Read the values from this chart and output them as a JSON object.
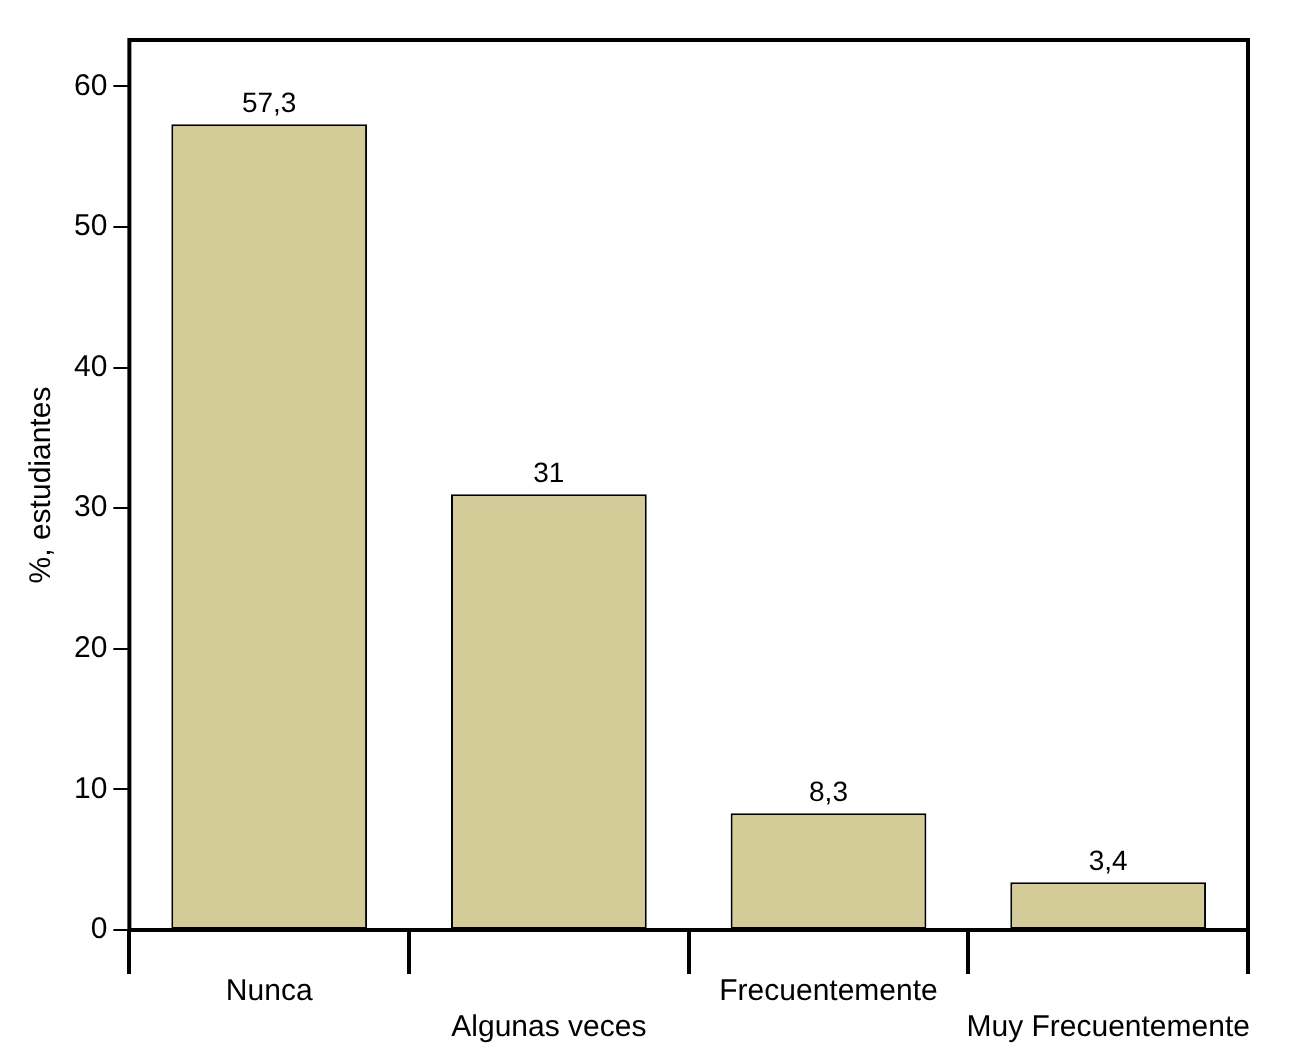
{
  "chart_data": {
    "type": "bar",
    "ylabel": "%, estudiantes",
    "categories": [
      "Nunca",
      "Algunas veces",
      "Frecuentemente",
      "Muy Frecuentemente"
    ],
    "values": [
      57.3,
      31,
      8.3,
      3.4
    ],
    "value_labels": [
      "57,3",
      "31",
      "8,3",
      "3,4"
    ],
    "color": "#d3cc98",
    "ylim": [
      0,
      63.3
    ],
    "yticks": [
      0,
      10,
      20,
      30,
      40,
      50,
      60
    ],
    "grid": false,
    "legend": false
  }
}
